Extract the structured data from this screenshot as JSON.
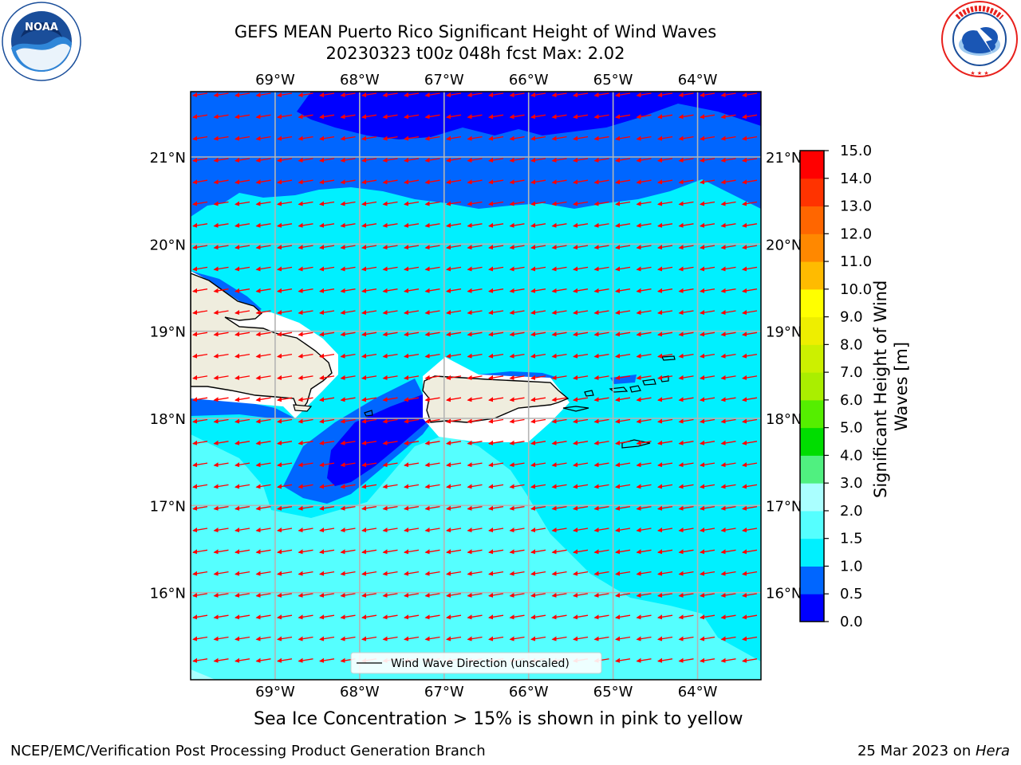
{
  "header": {
    "title_line1": "GEFS MEAN Puerto Rico Significant Height of Wind Waves",
    "title_line2": "20230323 t00z 048h fcst   Max: 2.02"
  },
  "logos": {
    "left": {
      "name": "noaa-logo",
      "text": "NOAA",
      "ring_text": "NATIONAL OCEANIC AND ATMOSPHERIC ADMINISTRATION · U.S. DEPARTMENT OF COMMERCE",
      "color": "#1a4e9a"
    },
    "right": {
      "name": "nws-logo",
      "ring_text": "NATIONAL WEATHER SERVICE",
      "color": "#e8201c"
    }
  },
  "map": {
    "lon_labels": [
      "69°W",
      "68°W",
      "67°W",
      "66°W",
      "65°W",
      "64°W"
    ],
    "lon_values": [
      -69,
      -68,
      -67,
      -66,
      -65,
      -64
    ],
    "lat_labels": [
      "21°N",
      "20°N",
      "19°N",
      "18°N",
      "17°N",
      "16°N"
    ],
    "lat_values": [
      21,
      20,
      19,
      18,
      17,
      16
    ],
    "extent": {
      "lon": [
        -70.0,
        -63.25
      ],
      "lat": [
        15.0,
        21.75
      ]
    },
    "legend_label": "Wind Wave Direction (unscaled)",
    "arrow_color": "#ff0000",
    "land_color": "#efedde",
    "max_value": 2.02
  },
  "colorbar": {
    "label": "Significant Height of Wind Waves [m]",
    "tick_labels": [
      "0.0",
      "0.5",
      "1.0",
      "1.5",
      "2.0",
      "3.0",
      "4.0",
      "5.0",
      "6.0",
      "7.0",
      "8.0",
      "9.0",
      "10.0",
      "11.0",
      "12.0",
      "13.0",
      "14.0",
      "15.0"
    ],
    "colors": [
      "#0000ff",
      "#0066ff",
      "#00f0ff",
      "#55ffff",
      "#aaffff",
      "#50f080",
      "#00dd00",
      "#55ee00",
      "#aaee00",
      "#ccf000",
      "#eeee00",
      "#ffff00",
      "#ffbb00",
      "#ff8800",
      "#ff6600",
      "#ff3300",
      "#ff0000"
    ]
  },
  "annotation": "Sea Ice Concentration > 15% is shown in pink to yellow",
  "footer": {
    "left": "NCEP/EMC/Verification Post Processing Product Generation Branch",
    "right_prefix": "25 Mar 2023 on ",
    "right_machine": "Hera"
  }
}
